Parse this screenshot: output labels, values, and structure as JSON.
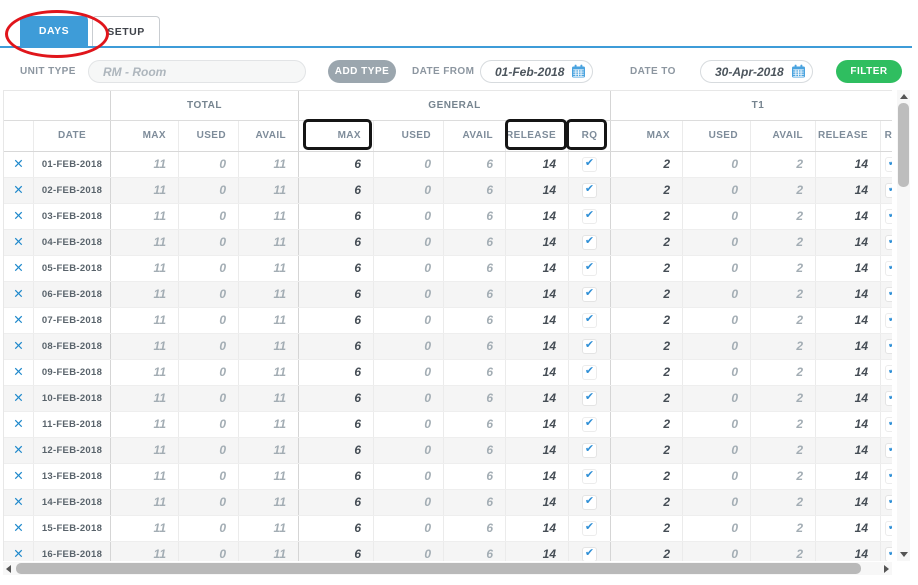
{
  "tabs": [
    {
      "label": "DAYS",
      "active": true
    },
    {
      "label": "SETUP",
      "active": false
    }
  ],
  "filter_bar": {
    "unit_type_label": "UNIT TYPE",
    "unit_type_value": "RM - Room",
    "add_type_button": "ADD TYPE",
    "date_from_label": "DATE FROM",
    "date_from_value": "01-Feb-2018",
    "date_to_label": "DATE TO",
    "date_to_value": "30-Apr-2018",
    "filter_button": "FILTER"
  },
  "table": {
    "group_headers": [
      {
        "label": ""
      },
      {
        "label": "TOTAL"
      },
      {
        "label": "GENERAL"
      },
      {
        "label": "T1"
      }
    ],
    "column_headers": [
      "DATE",
      "MAX",
      "USED",
      "AVAIL",
      "MAX",
      "USED",
      "AVAIL",
      "RELEASE",
      "RQ",
      "MAX",
      "USED",
      "AVAIL",
      "RELEASE",
      "RQ"
    ],
    "rows": [
      {
        "date": "01-FEB-2018",
        "total": {
          "max": "11",
          "used": "0",
          "avail": "11"
        },
        "general": {
          "max": "6",
          "used": "0",
          "avail": "6",
          "release": "14",
          "rq": true
        },
        "t1": {
          "max": "2",
          "used": "0",
          "avail": "2",
          "release": "14",
          "rq": true
        }
      },
      {
        "date": "02-FEB-2018",
        "total": {
          "max": "11",
          "used": "0",
          "avail": "11"
        },
        "general": {
          "max": "6",
          "used": "0",
          "avail": "6",
          "release": "14",
          "rq": true
        },
        "t1": {
          "max": "2",
          "used": "0",
          "avail": "2",
          "release": "14",
          "rq": true
        }
      },
      {
        "date": "03-FEB-2018",
        "total": {
          "max": "11",
          "used": "0",
          "avail": "11"
        },
        "general": {
          "max": "6",
          "used": "0",
          "avail": "6",
          "release": "14",
          "rq": true
        },
        "t1": {
          "max": "2",
          "used": "0",
          "avail": "2",
          "release": "14",
          "rq": true
        }
      },
      {
        "date": "04-FEB-2018",
        "total": {
          "max": "11",
          "used": "0",
          "avail": "11"
        },
        "general": {
          "max": "6",
          "used": "0",
          "avail": "6",
          "release": "14",
          "rq": true
        },
        "t1": {
          "max": "2",
          "used": "0",
          "avail": "2",
          "release": "14",
          "rq": true
        }
      },
      {
        "date": "05-FEB-2018",
        "total": {
          "max": "11",
          "used": "0",
          "avail": "11"
        },
        "general": {
          "max": "6",
          "used": "0",
          "avail": "6",
          "release": "14",
          "rq": true
        },
        "t1": {
          "max": "2",
          "used": "0",
          "avail": "2",
          "release": "14",
          "rq": true
        }
      },
      {
        "date": "06-FEB-2018",
        "total": {
          "max": "11",
          "used": "0",
          "avail": "11"
        },
        "general": {
          "max": "6",
          "used": "0",
          "avail": "6",
          "release": "14",
          "rq": true
        },
        "t1": {
          "max": "2",
          "used": "0",
          "avail": "2",
          "release": "14",
          "rq": true
        }
      },
      {
        "date": "07-FEB-2018",
        "total": {
          "max": "11",
          "used": "0",
          "avail": "11"
        },
        "general": {
          "max": "6",
          "used": "0",
          "avail": "6",
          "release": "14",
          "rq": true
        },
        "t1": {
          "max": "2",
          "used": "0",
          "avail": "2",
          "release": "14",
          "rq": true
        }
      },
      {
        "date": "08-FEB-2018",
        "total": {
          "max": "11",
          "used": "0",
          "avail": "11"
        },
        "general": {
          "max": "6",
          "used": "0",
          "avail": "6",
          "release": "14",
          "rq": true
        },
        "t1": {
          "max": "2",
          "used": "0",
          "avail": "2",
          "release": "14",
          "rq": true
        }
      },
      {
        "date": "09-FEB-2018",
        "total": {
          "max": "11",
          "used": "0",
          "avail": "11"
        },
        "general": {
          "max": "6",
          "used": "0",
          "avail": "6",
          "release": "14",
          "rq": true
        },
        "t1": {
          "max": "2",
          "used": "0",
          "avail": "2",
          "release": "14",
          "rq": true
        }
      },
      {
        "date": "10-FEB-2018",
        "total": {
          "max": "11",
          "used": "0",
          "avail": "11"
        },
        "general": {
          "max": "6",
          "used": "0",
          "avail": "6",
          "release": "14",
          "rq": true
        },
        "t1": {
          "max": "2",
          "used": "0",
          "avail": "2",
          "release": "14",
          "rq": true
        }
      },
      {
        "date": "11-FEB-2018",
        "total": {
          "max": "11",
          "used": "0",
          "avail": "11"
        },
        "general": {
          "max": "6",
          "used": "0",
          "avail": "6",
          "release": "14",
          "rq": true
        },
        "t1": {
          "max": "2",
          "used": "0",
          "avail": "2",
          "release": "14",
          "rq": true
        }
      },
      {
        "date": "12-FEB-2018",
        "total": {
          "max": "11",
          "used": "0",
          "avail": "11"
        },
        "general": {
          "max": "6",
          "used": "0",
          "avail": "6",
          "release": "14",
          "rq": true
        },
        "t1": {
          "max": "2",
          "used": "0",
          "avail": "2",
          "release": "14",
          "rq": true
        }
      },
      {
        "date": "13-FEB-2018",
        "total": {
          "max": "11",
          "used": "0",
          "avail": "11"
        },
        "general": {
          "max": "6",
          "used": "0",
          "avail": "6",
          "release": "14",
          "rq": true
        },
        "t1": {
          "max": "2",
          "used": "0",
          "avail": "2",
          "release": "14",
          "rq": true
        }
      },
      {
        "date": "14-FEB-2018",
        "total": {
          "max": "11",
          "used": "0",
          "avail": "11"
        },
        "general": {
          "max": "6",
          "used": "0",
          "avail": "6",
          "release": "14",
          "rq": true
        },
        "t1": {
          "max": "2",
          "used": "0",
          "avail": "2",
          "release": "14",
          "rq": true
        }
      },
      {
        "date": "15-FEB-2018",
        "total": {
          "max": "11",
          "used": "0",
          "avail": "11"
        },
        "general": {
          "max": "6",
          "used": "0",
          "avail": "6",
          "release": "14",
          "rq": true
        },
        "t1": {
          "max": "2",
          "used": "0",
          "avail": "2",
          "release": "14",
          "rq": true
        }
      },
      {
        "date": "16-FEB-2018",
        "total": {
          "max": "11",
          "used": "0",
          "avail": "11"
        },
        "general": {
          "max": "6",
          "used": "0",
          "avail": "6",
          "release": "14",
          "rq": true
        },
        "t1": {
          "max": "2",
          "used": "0",
          "avail": "2",
          "release": "14",
          "rq": true
        }
      }
    ]
  },
  "annotations": {
    "red_ellipse_around": "DAYS tab",
    "black_boxes_around": [
      "GENERAL MAX header",
      "GENERAL RELEASE header",
      "GENERAL RQ header"
    ]
  },
  "icons": {
    "delete_row": "✕",
    "rq_checked": "✔"
  },
  "colors": {
    "accent_blue": "#3E9CD8",
    "check_blue": "#2F8FD6",
    "button_gray": "#9BA6AE",
    "filter_green": "#2FBE60",
    "annotation_red": "#E0151B",
    "annotation_black": "#151515"
  }
}
